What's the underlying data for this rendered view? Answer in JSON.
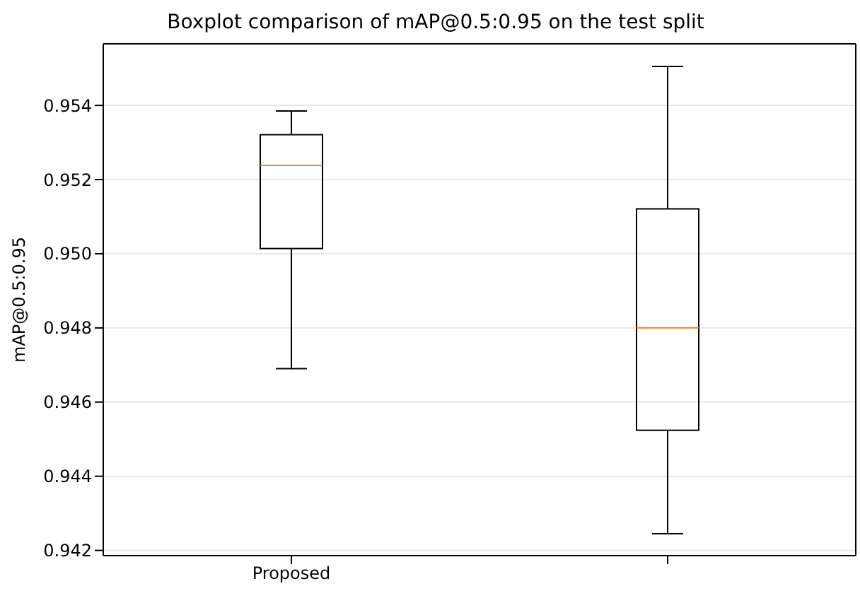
{
  "chart_data": {
    "type": "box",
    "title": "Boxplot comparison of mAP@0.5:0.95 on the test split",
    "ylabel": "mAP@0.5:0.95",
    "categories": [
      "Proposed",
      null
    ],
    "color": "#000000",
    "boxes": [
      {
        "low": 0.9469,
        "q1": 0.95014,
        "median": 0.95238,
        "q3": 0.95321,
        "high": 0.95385
      },
      {
        "low": 0.94245,
        "q1": 0.94524,
        "median": 0.948,
        "q3": 0.95121,
        "high": 0.95505
      }
    ],
    "ylim": [
      0.94186,
      0.95566
    ],
    "yticks": [
      0.942,
      0.944,
      0.946,
      0.948,
      {
        "value": 0.95,
        "label": "0.950"
      },
      0.952,
      0.954
    ],
    "grid": "y"
  }
}
